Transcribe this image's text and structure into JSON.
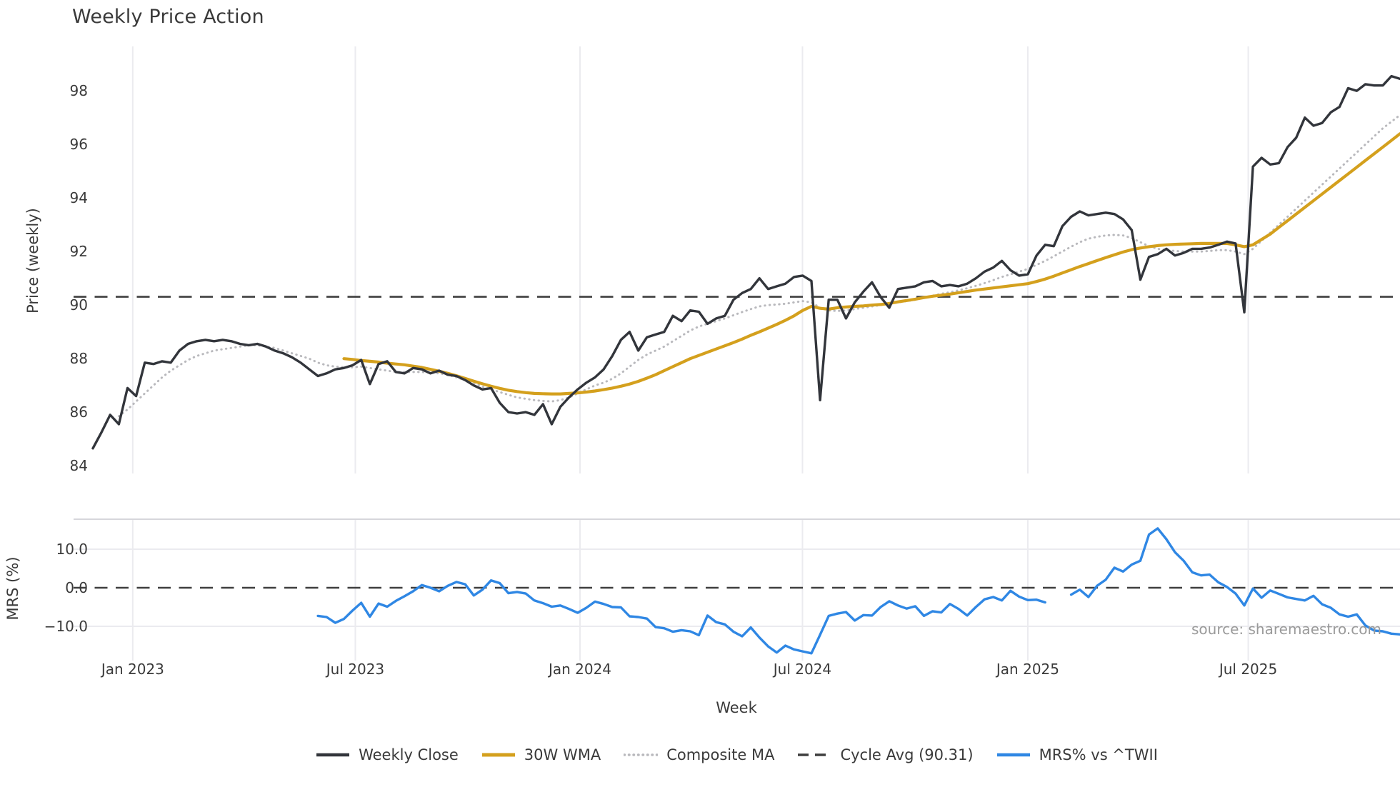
{
  "title": "Weekly Price Action",
  "source_note": "source: sharemaestro.com",
  "colors": {
    "weekly_close": "#32353b",
    "wma": "#d4a01d",
    "composite": "#b9b9bd",
    "dashed": "#3f3f3f",
    "mrs": "#2f87e4",
    "grid": "#ebebef",
    "spine": "#d6d6db",
    "text": "#3a3a3a",
    "muted": "#9a9a9a"
  },
  "axes": {
    "price_ylabel": "Price (weekly)",
    "mrs_ylabel": "MRS (%)",
    "xlabel": "Week"
  },
  "legend": {
    "items": [
      {
        "label": "Weekly Close",
        "style": "solid-close"
      },
      {
        "label": "30W WMA",
        "style": "solid-wma"
      },
      {
        "label": "Composite MA",
        "style": "dotted-composite"
      },
      {
        "label": "Cycle Avg (90.31)",
        "style": "dashed-cycle"
      },
      {
        "label": "MRS% vs ^TWII",
        "style": "solid-mrs"
      }
    ]
  },
  "chart_data": [
    {
      "type": "line",
      "title": "Weekly Price Action",
      "xlabel": "Week",
      "ylabel": "Price (weekly)",
      "x_tick_labels": [
        "Jan 2023",
        "Jul 2023",
        "Jan 2024",
        "Jul 2024",
        "Jan 2025",
        "Jul 2025"
      ],
      "x_tick_weeks": [
        4.61,
        30.32,
        56.27,
        81.97,
        108.0,
        133.46
      ],
      "x_range_note": "weekly data, week 0 = early Dec 2022, 152 weeks through mid Nov 2025",
      "ylim": [
        83.71,
        99.66
      ],
      "y_ticks": [
        {
          "value": 98,
          "label": "98"
        },
        {
          "value": 96,
          "label": "96"
        },
        {
          "value": 94,
          "label": "94"
        },
        {
          "value": 92,
          "label": "92"
        },
        {
          "value": 90,
          "label": "90"
        },
        {
          "value": 88,
          "label": "88"
        },
        {
          "value": 86,
          "label": "86"
        },
        {
          "value": 84,
          "label": "84"
        }
      ],
      "grid": "vertical-only",
      "legend_position": "bottom-center",
      "cycle_avg": 90.31,
      "series": [
        {
          "name": "Weekly Close",
          "color_key": "weekly_close",
          "width": 3.4,
          "start_week": 0,
          "values": [
            84.65,
            85.25,
            85.9,
            85.55,
            86.9,
            86.6,
            87.85,
            87.8,
            87.9,
            87.85,
            88.3,
            88.55,
            88.65,
            88.7,
            88.65,
            88.7,
            88.65,
            88.55,
            88.5,
            88.55,
            88.45,
            88.3,
            88.2,
            88.05,
            87.85,
            87.6,
            87.35,
            87.45,
            87.6,
            87.65,
            87.75,
            87.95,
            87.05,
            87.8,
            87.9,
            87.5,
            87.45,
            87.65,
            87.6,
            87.45,
            87.55,
            87.4,
            87.35,
            87.2,
            87.0,
            86.85,
            86.9,
            86.35,
            86.0,
            85.95,
            86.0,
            85.9,
            86.3,
            85.55,
            86.2,
            86.55,
            86.85,
            87.1,
            87.3,
            87.6,
            88.1,
            88.7,
            89.0,
            88.3,
            88.8,
            88.9,
            89.0,
            89.6,
            89.4,
            89.8,
            89.75,
            89.3,
            89.5,
            89.6,
            90.2,
            90.45,
            90.6,
            91.0,
            90.6,
            90.7,
            90.8,
            91.05,
            91.1,
            90.9,
            86.45,
            90.2,
            90.2,
            89.5,
            90.1,
            90.5,
            90.85,
            90.3,
            89.9,
            90.6,
            90.65,
            90.7,
            90.85,
            90.9,
            90.7,
            90.75,
            90.7,
            90.8,
            91.0,
            91.25,
            91.4,
            91.65,
            91.3,
            91.1,
            91.15,
            91.85,
            92.25,
            92.2,
            92.95,
            93.3,
            93.5,
            93.35,
            93.4,
            93.45,
            93.4,
            93.2,
            92.8,
            90.95,
            91.8,
            91.9,
            92.1,
            91.85,
            91.95,
            92.1,
            92.1,
            92.15,
            92.25,
            92.37,
            92.3,
            89.73,
            95.17,
            95.5,
            95.25,
            95.3,
            95.9,
            96.25,
            97.0,
            96.7,
            96.8,
            97.2,
            97.4,
            98.1,
            98.0,
            98.25,
            98.2,
            98.2,
            98.55,
            98.45
          ]
        },
        {
          "name": "30W WMA",
          "color_key": "wma",
          "width": 4.2,
          "start_week": 29,
          "values": [
            88.0,
            87.97,
            87.93,
            87.9,
            87.87,
            87.83,
            87.8,
            87.77,
            87.72,
            87.67,
            87.6,
            87.53,
            87.45,
            87.36,
            87.26,
            87.16,
            87.06,
            86.97,
            86.89,
            86.82,
            86.77,
            86.73,
            86.7,
            86.69,
            86.68,
            86.68,
            86.7,
            86.72,
            86.75,
            86.79,
            86.84,
            86.9,
            86.97,
            87.05,
            87.15,
            87.27,
            87.4,
            87.55,
            87.7,
            87.85,
            88.0,
            88.12,
            88.24,
            88.36,
            88.48,
            88.6,
            88.73,
            88.87,
            89.0,
            89.14,
            89.28,
            89.43,
            89.6,
            89.8,
            89.95,
            89.88,
            89.85,
            89.9,
            89.93,
            89.95,
            89.97,
            90.0,
            90.02,
            90.06,
            90.12,
            90.17,
            90.22,
            90.28,
            90.33,
            90.37,
            90.41,
            90.46,
            90.51,
            90.56,
            90.6,
            90.64,
            90.68,
            90.72,
            90.76,
            90.8,
            90.88,
            90.97,
            91.08,
            91.2,
            91.32,
            91.44,
            91.55,
            91.66,
            91.77,
            91.88,
            91.98,
            92.07,
            92.13,
            92.18,
            92.22,
            92.25,
            92.27,
            92.28,
            92.29,
            92.3,
            92.3,
            92.3,
            92.3,
            92.25,
            92.18,
            92.25,
            92.45,
            92.65,
            92.9,
            93.15,
            93.4,
            93.65,
            93.9,
            94.15,
            94.4,
            94.65,
            94.9,
            95.15,
            95.4,
            95.65,
            95.9,
            96.15,
            96.4
          ]
        },
        {
          "name": "Composite MA",
          "color_key": "composite",
          "width": 3.0,
          "dash": "dotted",
          "start_week": 3,
          "values": [
            85.85,
            86.1,
            86.4,
            86.7,
            87.0,
            87.3,
            87.55,
            87.75,
            87.95,
            88.1,
            88.2,
            88.3,
            88.35,
            88.4,
            88.45,
            88.5,
            88.5,
            88.45,
            88.4,
            88.3,
            88.2,
            88.1,
            88.0,
            87.85,
            87.75,
            87.7,
            87.68,
            87.68,
            87.7,
            87.65,
            87.6,
            87.55,
            87.5,
            87.5,
            87.5,
            87.5,
            87.48,
            87.45,
            87.4,
            87.3,
            87.2,
            87.1,
            86.95,
            86.85,
            86.75,
            86.65,
            86.55,
            86.5,
            86.45,
            86.42,
            86.4,
            86.45,
            86.55,
            86.7,
            86.85,
            87.0,
            87.1,
            87.25,
            87.45,
            87.7,
            87.95,
            88.15,
            88.3,
            88.45,
            88.65,
            88.85,
            89.05,
            89.2,
            89.3,
            89.4,
            89.5,
            89.62,
            89.74,
            89.85,
            89.95,
            90.0,
            90.02,
            90.05,
            90.1,
            90.15,
            90.1,
            89.9,
            89.8,
            89.78,
            89.8,
            89.85,
            89.9,
            89.95,
            90.0,
            90.05,
            90.1,
            90.15,
            90.2,
            90.28,
            90.35,
            90.42,
            90.48,
            90.55,
            90.63,
            90.72,
            90.82,
            90.93,
            91.05,
            91.15,
            91.25,
            91.35,
            91.5,
            91.65,
            91.82,
            92.0,
            92.18,
            92.35,
            92.48,
            92.55,
            92.6,
            92.62,
            92.6,
            92.5,
            92.35,
            92.2,
            92.1,
            92.05,
            92.02,
            92.0,
            92.0,
            92.0,
            92.02,
            92.05,
            92.05,
            92.0,
            91.9,
            92.1,
            92.4,
            92.7,
            93.0,
            93.3,
            93.6,
            93.9,
            94.2,
            94.5,
            94.8,
            95.1,
            95.4,
            95.7,
            96.0,
            96.3,
            96.6,
            96.85,
            97.1
          ]
        },
        {
          "name": "Cycle Avg (90.31)",
          "color_key": "dashed",
          "type": "hline",
          "value": 90.31,
          "dash": "dashed",
          "width": 2.6
        }
      ]
    },
    {
      "type": "line",
      "ylabel": "MRS (%)",
      "ylim": [
        -18.89,
        17.78
      ],
      "y_ticks": [
        {
          "value": 10,
          "label": "10.0"
        },
        {
          "value": 0,
          "label": "0.0"
        },
        {
          "value": -10,
          "label": "−10.0"
        }
      ],
      "h_gridlines": [
        10,
        -10
      ],
      "series": [
        {
          "name": "MRS% vs ^TWII",
          "color_key": "mrs",
          "width": 3.4,
          "start_week": 26,
          "values": [
            -7.3,
            -7.6,
            -9.1,
            -8.1,
            -5.9,
            -3.9,
            -7.5,
            -4.1,
            -4.9,
            -3.4,
            -2.2,
            -0.9,
            0.7,
            0.0,
            -0.9,
            0.5,
            1.5,
            0.9,
            -2.0,
            -0.5,
            1.9,
            1.2,
            -1.4,
            -1.1,
            -1.5,
            -3.3,
            -4.0,
            -4.9,
            -4.6,
            -5.5,
            -6.5,
            -5.2,
            -3.6,
            -4.2,
            -5.0,
            -5.1,
            -7.4,
            -7.6,
            -8.0,
            -10.2,
            -10.5,
            -11.4,
            -11.0,
            -11.3,
            -12.3,
            -7.2,
            -8.9,
            -9.5,
            -11.4,
            -12.6,
            -10.3,
            -12.9,
            -15.2,
            -16.8,
            -15.0,
            -16.0,
            -16.5,
            -17.0,
            -12.2,
            -7.3,
            -6.7,
            -6.3,
            -8.5,
            -7.1,
            -7.2,
            -5.0,
            -3.5,
            -4.6,
            -5.4,
            -4.8,
            -7.3,
            -6.1,
            -6.4,
            -4.2,
            -5.5,
            -7.2,
            -5.0,
            -3.0,
            -2.4,
            -3.3,
            -0.8,
            -2.3,
            -3.2,
            -3.1,
            -3.8,
            null,
            null,
            -1.8,
            -0.5,
            -2.4,
            0.5,
            2.1,
            5.2,
            4.2,
            6.0,
            7.0,
            13.8,
            15.4,
            12.6,
            9.2,
            7.0,
            4.0,
            3.2,
            3.4,
            1.4,
            0.2,
            -1.5,
            -4.6,
            -0.2,
            -2.6,
            -0.7,
            -1.6,
            -2.5,
            -2.9,
            -3.3,
            -2.1,
            -4.3,
            -5.2,
            -6.9,
            -7.5,
            -6.9,
            -9.8,
            -11.1,
            -11.3,
            -11.9,
            -12.1
          ]
        },
        {
          "name": "Zero line",
          "color_key": "dashed",
          "type": "hline",
          "value": 0,
          "dash": "dashed",
          "width": 2.4
        }
      ]
    }
  ]
}
